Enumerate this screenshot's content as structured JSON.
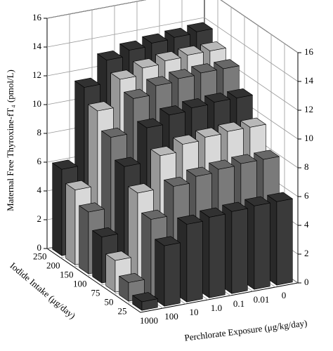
{
  "chart_data": {
    "type": "bar3d",
    "z_label": "Maternal Free Thyroxine-fT₄ (pmol/L)",
    "x_label": "Perchlorate Exposure (μg/kg/day)",
    "y_label": "Iodide Intake (μg/day)",
    "categories": [
      "1000",
      "100",
      "10",
      "1.0",
      "0.1",
      "0.01",
      "0"
    ],
    "series": [
      {
        "name": "25",
        "color": "#3a3a3a",
        "values": [
          0.6,
          4.2,
          5.4,
          5.6,
          5.7,
          5.8,
          5.8
        ]
      },
      {
        "name": "50",
        "color": "#7a7a7a",
        "values": [
          1.3,
          5.4,
          7.4,
          7.8,
          8.0,
          8.1,
          8.1
        ]
      },
      {
        "name": "75",
        "color": "#d8d8d8",
        "values": [
          2.2,
          6.6,
          8.9,
          9.4,
          9.6,
          9.7,
          9.7
        ]
      },
      {
        "name": "100",
        "color": "#3a3a3a",
        "values": [
          3.2,
          7.8,
          10.2,
          10.8,
          11.0,
          11.1,
          11.1
        ]
      },
      {
        "name": "150",
        "color": "#7a7a7a",
        "values": [
          4.3,
          9.2,
          11.6,
          12.2,
          12.4,
          12.5,
          12.5
        ]
      },
      {
        "name": "200",
        "color": "#d8d8d8",
        "values": [
          5.2,
          10.4,
          12.3,
          12.8,
          13.0,
          13.1,
          13.1
        ]
      },
      {
        "name": "250",
        "color": "#3a3a3a",
        "values": [
          6.0,
          11.4,
          13.0,
          13.4,
          13.6,
          13.7,
          13.8
        ]
      }
    ],
    "zlim": [
      0,
      16
    ],
    "zticks": [
      0,
      2,
      4,
      6,
      8,
      10,
      12,
      14,
      16
    ],
    "grid": true
  }
}
